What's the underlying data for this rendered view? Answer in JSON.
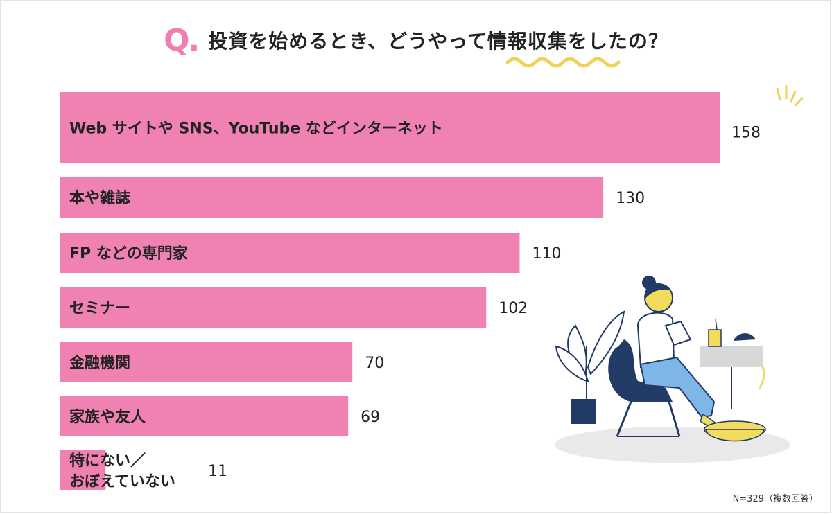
{
  "title": {
    "q_mark": "Q.",
    "text": "投資を始めるとき、どうやって情報収集をしたの？"
  },
  "note": "N=329（複数回答）",
  "colors": {
    "bar": "#ef82b3",
    "accent_wave": "#f2d15a",
    "illustration_navy": "#223a66",
    "illustration_yellow": "#f3dc5c",
    "illustration_blue": "#7eb6e8"
  },
  "chart_data": {
    "type": "bar",
    "orientation": "horizontal",
    "categories": [
      "Web サイトや SNS、YouTube などインターネット",
      "本や雑誌",
      "FP などの専門家",
      "セミナー",
      "金融機関",
      "家族や友人",
      "特にない／おぼえていない"
    ],
    "category_lines": [
      [
        "Web サイトや SNS、YouTube などインターネット"
      ],
      [
        "本や雑誌"
      ],
      [
        "FP などの専門家"
      ],
      [
        "セミナー"
      ],
      [
        "金融機関"
      ],
      [
        "家族や友人"
      ],
      [
        "特にない／",
        "おぼえていない"
      ]
    ],
    "values": [
      158,
      130,
      110,
      102,
      70,
      69,
      11
    ],
    "xlim": [
      0,
      158
    ],
    "grid": false,
    "legend": "none"
  },
  "illustration": {
    "icon": "woman-reading-in-chair-illustration"
  }
}
